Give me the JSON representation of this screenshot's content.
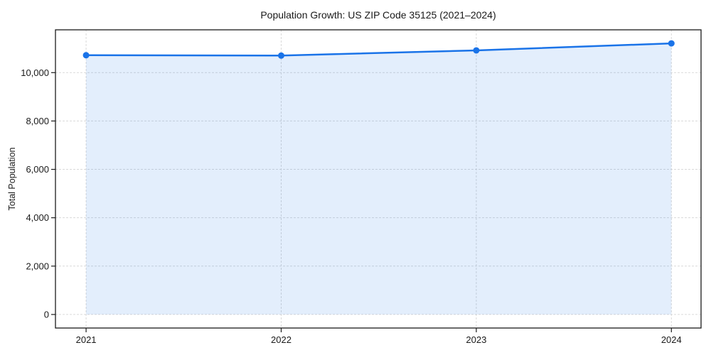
{
  "chart_data": {
    "type": "line",
    "title": "Population Growth: US ZIP Code 35125 (2021–2024)",
    "xlabel": "",
    "ylabel": "Total Population",
    "x": [
      2021,
      2022,
      2023,
      2024
    ],
    "series": [
      {
        "name": "Total Population",
        "values": [
          10720,
          10705,
          10920,
          11210
        ]
      }
    ],
    "area_fill": true,
    "area_baseline": 0,
    "markers": true,
    "grid": true,
    "grid_style": "dashed",
    "legend_position": "none",
    "xticks": [
      2021,
      2022,
      2023,
      2024
    ],
    "yticks": [
      0,
      2000,
      4000,
      6000,
      8000,
      10000
    ],
    "xlim": [
      2020.843,
      2024.152
    ],
    "ylim": [
      -560,
      11770
    ],
    "colors": {
      "line": "#1a73e8",
      "marker": "#1a73e8",
      "area": "rgba(26,115,232,0.12)",
      "grid": "#d9d9d9",
      "axis": "#1a1a1a",
      "text": "#1a1a1a",
      "background": "#ffffff"
    }
  }
}
